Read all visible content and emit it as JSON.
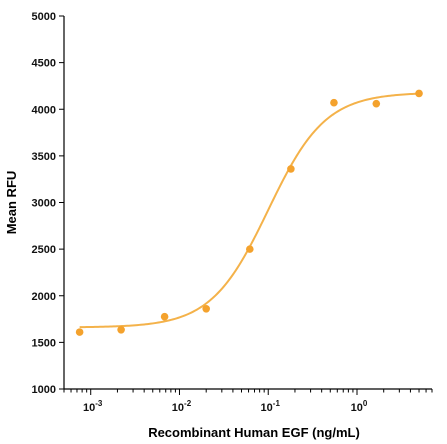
{
  "chart_data": {
    "type": "scatter",
    "title": "",
    "xlabel": "Recombinant Human EGF (ng/mL)",
    "ylabel": "Mean RFU",
    "x_scale": "log",
    "xlim": [
      0.0005,
      7
    ],
    "ylim": [
      1000,
      5000
    ],
    "yticks": [
      1000,
      1500,
      2000,
      2500,
      3000,
      3500,
      4000,
      4500,
      5000
    ],
    "xticks": [
      {
        "value": 0.001,
        "base": "10",
        "exp": "-3"
      },
      {
        "value": 0.01,
        "base": "10",
        "exp": "-2"
      },
      {
        "value": 0.1,
        "base": "10",
        "exp": "-1"
      },
      {
        "value": 1,
        "base": "10",
        "exp": "0"
      }
    ],
    "grid": false,
    "legend": "none",
    "marker_color": "#f4a22d",
    "curve_color": "#f4b24a",
    "series": [
      {
        "x": [
          0.00075,
          0.0022,
          0.0068,
          0.02,
          0.062,
          0.18,
          0.55,
          1.65,
          5.0
        ],
        "y": [
          1610,
          1635,
          1775,
          1860,
          2500,
          3360,
          4070,
          4060,
          4170
        ]
      }
    ],
    "fit_curve": {
      "bottom": 1660,
      "top": 4180,
      "ec50": 0.1,
      "hill": 1.35
    }
  }
}
